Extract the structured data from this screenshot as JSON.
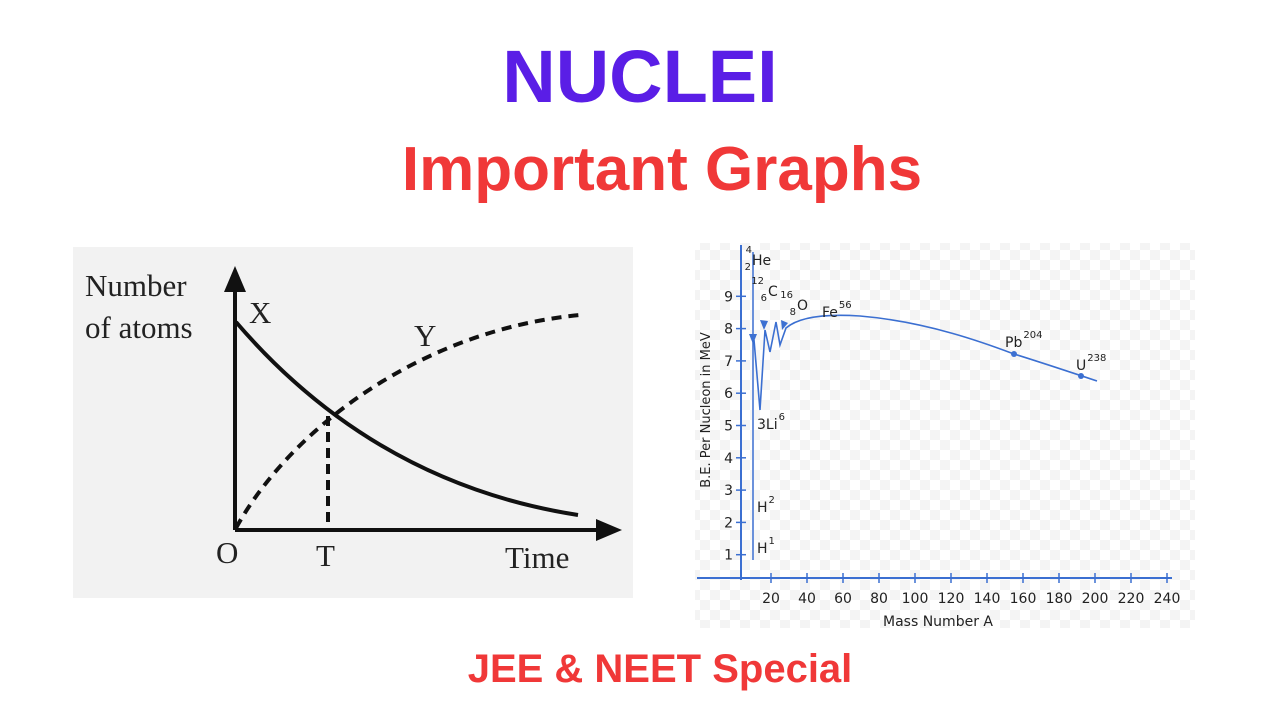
{
  "header": {
    "title": "NUCLEI",
    "subtitle": "Important Graphs"
  },
  "decay_graph": {
    "y_label": [
      "Number",
      "of atoms"
    ],
    "curve_x": "X",
    "curve_y": "Y",
    "origin": "O",
    "t_label": "T",
    "x_label": "Time"
  },
  "binding_energy_graph": {
    "y_label": "B.E. Per Nucleon in MeV",
    "x_label": "Mass Number A",
    "yticks": [
      1,
      2,
      3,
      4,
      5,
      6,
      7,
      8,
      9
    ],
    "xticks": [
      20,
      40,
      60,
      80,
      100,
      120,
      140,
      160,
      180,
      200,
      220,
      240
    ],
    "labels": [
      {
        "sup": "4",
        "sub": "2",
        "name": "He"
      },
      {
        "sup": "12",
        "sub": "6",
        "name": "C"
      },
      {
        "sup": "16",
        "sub": "8",
        "name": "O"
      },
      {
        "name": "Fe",
        "sup": "56"
      },
      {
        "name": "Pb",
        "sup": "204"
      },
      {
        "name": "U",
        "sup": "238"
      },
      {
        "name": "3Li",
        "sup": "6"
      },
      {
        "name": "H",
        "sup": "2"
      },
      {
        "name": "H",
        "sup": "1"
      }
    ]
  },
  "footer": "JEE & NEET Special"
}
